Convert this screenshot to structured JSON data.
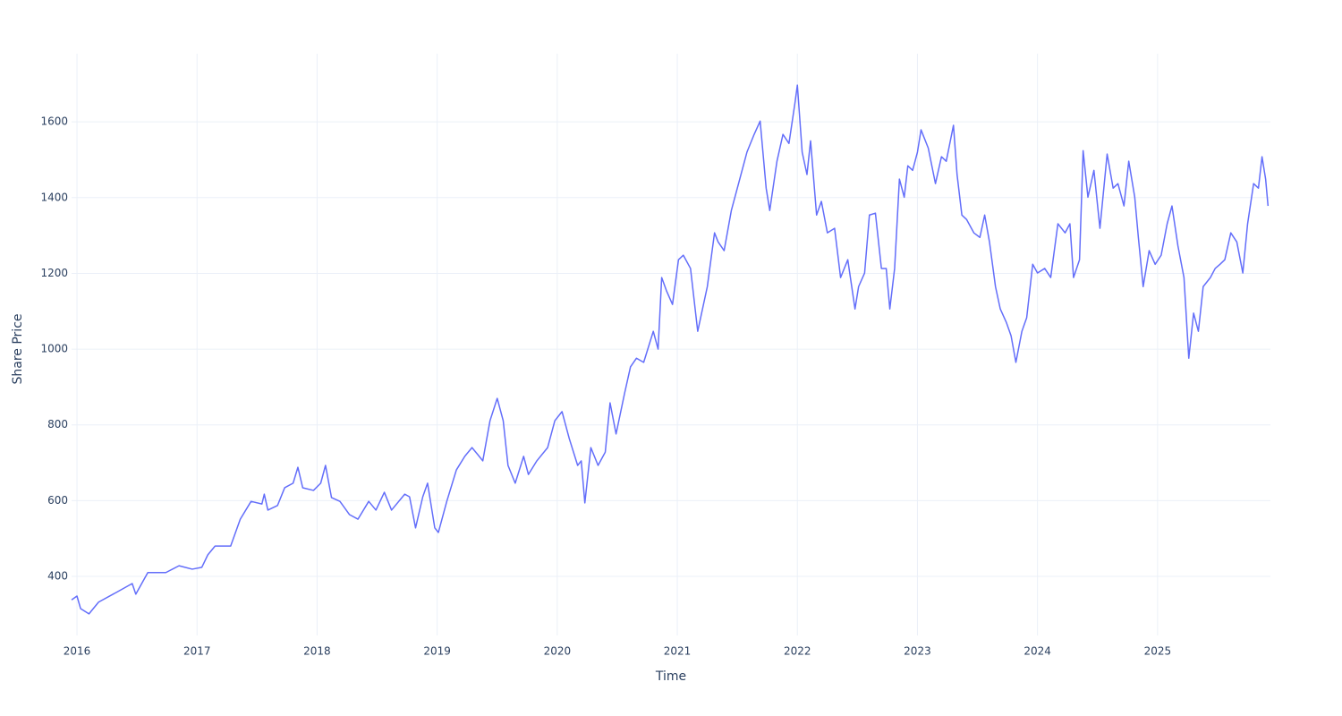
{
  "chart_data": {
    "type": "line",
    "x_label": "Time",
    "y_label": "Share Price",
    "xlim": [
      2015.955,
      2025.94
    ],
    "ylim": [
      244,
      1780
    ],
    "xticks": [
      2016,
      2017,
      2018,
      2019,
      2020,
      2021,
      2022,
      2023,
      2024,
      2025
    ],
    "yticks": [
      400,
      600,
      800,
      1000,
      1200,
      1400,
      1600
    ],
    "grid": true,
    "x": [
      2015.955,
      2016,
      2016.03,
      2016.1,
      2016.18,
      2016.33,
      2016.46,
      2016.49,
      2016.59,
      2016.74,
      2016.85,
      2016.96,
      2017.04,
      2017.09,
      2017.15,
      2017.28,
      2017.36,
      2017.45,
      2017.54,
      2017.56,
      2017.59,
      2017.67,
      2017.73,
      2017.8,
      2017.84,
      2017.88,
      2017.97,
      2018.03,
      2018.07,
      2018.12,
      2018.19,
      2018.27,
      2018.34,
      2018.43,
      2018.49,
      2018.56,
      2018.62,
      2018.73,
      2018.77,
      2018.82,
      2018.88,
      2018.92,
      2018.98,
      2019.01,
      2019.08,
      2019.16,
      2019.23,
      2019.29,
      2019.35,
      2019.38,
      2019.44,
      2019.5,
      2019.55,
      2019.59,
      2019.65,
      2019.72,
      2019.76,
      2019.83,
      2019.92,
      2019.98,
      2020.04,
      2020.1,
      2020.17,
      2020.2,
      2020.23,
      2020.28,
      2020.34,
      2020.4,
      2020.44,
      2020.49,
      2020.56,
      2020.61,
      2020.66,
      2020.72,
      2020.8,
      2020.84,
      2020.87,
      2020.91,
      2020.96,
      2021.01,
      2021.05,
      2021.11,
      2021.17,
      2021.25,
      2021.31,
      2021.34,
      2021.39,
      2021.45,
      2021.51,
      2021.58,
      2021.64,
      2021.69,
      2021.74,
      2021.77,
      2021.83,
      2021.88,
      2021.93,
      2021.98,
      2022,
      2022.04,
      2022.08,
      2022.11,
      2022.16,
      2022.2,
      2022.25,
      2022.31,
      2022.36,
      2022.42,
      2022.48,
      2022.51,
      2022.56,
      2022.6,
      2022.65,
      2022.7,
      2022.74,
      2022.77,
      2022.81,
      2022.85,
      2022.89,
      2022.92,
      2022.96,
      2023,
      2023.03,
      2023.09,
      2023.15,
      2023.2,
      2023.24,
      2023.3,
      2023.33,
      2023.37,
      2023.41,
      2023.47,
      2023.52,
      2023.56,
      2023.6,
      2023.65,
      2023.69,
      2023.74,
      2023.78,
      2023.82,
      2023.87,
      2023.91,
      2023.96,
      2024,
      2024.06,
      2024.11,
      2024.17,
      2024.23,
      2024.27,
      2024.3,
      2024.35,
      2024.38,
      2024.42,
      2024.47,
      2024.52,
      2024.58,
      2024.63,
      2024.67,
      2024.72,
      2024.76,
      2024.81,
      2024.84,
      2024.88,
      2024.93,
      2024.98,
      2025.03,
      2025.08,
      2025.12,
      2025.17,
      2025.22,
      2025.26,
      2025.3,
      2025.34,
      2025.38,
      2025.44,
      2025.48,
      2025.52,
      2025.56,
      2025.61,
      2025.66,
      2025.71,
      2025.75,
      2025.8,
      2025.84,
      2025.87,
      2025.9,
      2025.92
    ],
    "series": [
      {
        "color": "#636efa",
        "values": [
          338,
          348,
          315,
          301,
          332,
          358,
          381,
          353,
          410,
          410,
          428,
          419,
          424,
          457,
          480,
          480,
          551,
          598,
          591,
          617,
          575,
          587,
          634,
          646,
          688,
          634,
          627,
          646,
          693,
          608,
          598,
          563,
          551,
          598,
          575,
          622,
          575,
          617,
          610,
          528,
          610,
          646,
          528,
          516,
          598,
          681,
          717,
          740,
          717,
          705,
          811,
          870,
          811,
          693,
          646,
          717,
          669,
          705,
          740,
          811,
          835,
          764,
          693,
          705,
          594,
          740,
          693,
          728,
          858,
          776,
          882,
          953,
          976,
          965,
          1047,
          1000,
          1189,
          1154,
          1118,
          1236,
          1248,
          1213,
          1047,
          1165,
          1307,
          1283,
          1260,
          1366,
          1437,
          1520,
          1567,
          1602,
          1425,
          1366,
          1496,
          1567,
          1543,
          1650,
          1697,
          1520,
          1461,
          1550,
          1354,
          1390,
          1307,
          1319,
          1189,
          1236,
          1106,
          1165,
          1201,
          1354,
          1359,
          1213,
          1213,
          1106,
          1213,
          1449,
          1401,
          1484,
          1472,
          1520,
          1579,
          1531,
          1437,
          1508,
          1496,
          1591,
          1461,
          1354,
          1342,
          1307,
          1295,
          1354,
          1283,
          1165,
          1106,
          1071,
          1035,
          965,
          1047,
          1083,
          1224,
          1201,
          1213,
          1189,
          1331,
          1307,
          1331,
          1189,
          1236,
          1524,
          1401,
          1472,
          1319,
          1515,
          1425,
          1437,
          1378,
          1496,
          1401,
          1295,
          1165,
          1260,
          1224,
          1248,
          1331,
          1378,
          1272,
          1189,
          976,
          1095,
          1047,
          1165,
          1189,
          1213,
          1224,
          1236,
          1307,
          1283,
          1201,
          1331,
          1437,
          1425,
          1508,
          1449,
          1378
        ]
      }
    ]
  }
}
